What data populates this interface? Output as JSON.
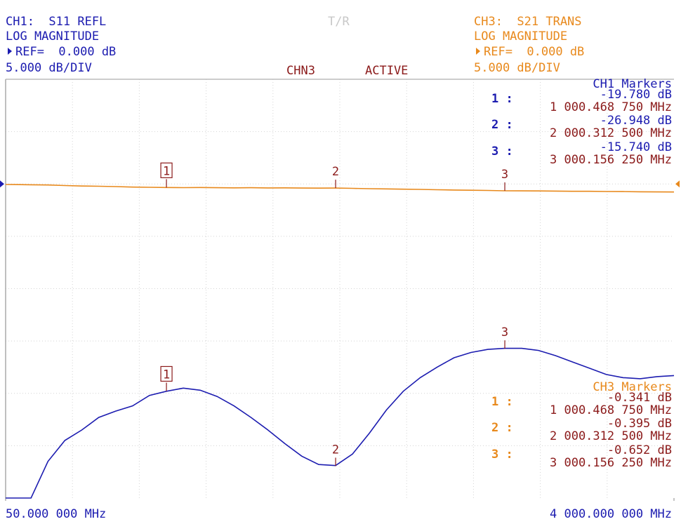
{
  "chart_data": {
    "type": "line",
    "center_label": "T/R",
    "status": [
      "CHN3",
      "ACTIVE"
    ],
    "xlim": [
      50,
      4000
    ],
    "ylim": [
      -30,
      10
    ],
    "xticks": [
      {
        "value": 50,
        "label": "50.000 000 MHz"
      },
      {
        "value": 4000,
        "label": "4 000.000 000 MHz"
      }
    ],
    "x": [
      50,
      100,
      200,
      300,
      400,
      500,
      600,
      700,
      800,
      900,
      1000,
      1100,
      1200,
      1300,
      1400,
      1500,
      1600,
      1700,
      1800,
      1900,
      2000,
      2100,
      2200,
      2300,
      2400,
      2500,
      2600,
      2700,
      2800,
      2900,
      3000,
      3100,
      3200,
      3300,
      3400,
      3500,
      3600,
      3700,
      3800,
      3900,
      4000
    ],
    "series": [
      {
        "name": "CH1:  S11 REFL",
        "format": "LOG MAGNITUDE",
        "ref": {
          "value": 0,
          "label": "REF=  0.000 dB"
        },
        "scale": "5.000 dB/DIV",
        "color": "#1c1cb0",
        "values": [
          -30,
          -30,
          -30,
          -26.5,
          -24.5,
          -23.5,
          -22.3,
          -21.7,
          -21.2,
          -20.2,
          -19.8,
          -19.5,
          -19.7,
          -20.3,
          -21.2,
          -22.3,
          -23.5,
          -24.8,
          -26,
          -26.8,
          -26.9,
          -25.8,
          -23.8,
          -21.6,
          -19.8,
          -18.5,
          -17.5,
          -16.6,
          -16.1,
          -15.8,
          -15.7,
          -15.7,
          -15.9,
          -16.4,
          -17,
          -17.6,
          -18.2,
          -18.5,
          -18.6,
          -18.4,
          -18.3
        ],
        "markers": {
          "title": "CH1 Markers",
          "items": [
            {
              "id": "1 :",
              "tag": "1",
              "value": -19.78,
              "value_label": "-19.780 dB",
              "freq": 1000.46875,
              "freq_label": "1 000.468 750 MHz"
            },
            {
              "id": "2 :",
              "tag": "2",
              "value": -26.948,
              "value_label": "-26.948 dB",
              "freq": 2000.3125,
              "freq_label": "2 000.312 500 MHz"
            },
            {
              "id": "3 :",
              "tag": "3",
              "value": -15.74,
              "value_label": "-15.740 dB",
              "freq": 3000.15625,
              "freq_label": "3 000.156 250 MHz"
            }
          ]
        }
      },
      {
        "name": "CH3:  S21 TRANS",
        "format": "LOG MAGNITUDE",
        "ref": {
          "value": 0,
          "label": "REF=  0.000 dB"
        },
        "scale": "5.000 dB/DIV",
        "color": "#e8891c",
        "values": [
          -0.05,
          -0.06,
          -0.08,
          -0.1,
          -0.15,
          -0.2,
          -0.22,
          -0.25,
          -0.3,
          -0.32,
          -0.341,
          -0.35,
          -0.34,
          -0.36,
          -0.37,
          -0.36,
          -0.38,
          -0.37,
          -0.39,
          -0.4,
          -0.395,
          -0.42,
          -0.45,
          -0.47,
          -0.5,
          -0.52,
          -0.55,
          -0.58,
          -0.6,
          -0.62,
          -0.652,
          -0.66,
          -0.67,
          -0.68,
          -0.7,
          -0.7,
          -0.72,
          -0.73,
          -0.75,
          -0.76,
          -0.77
        ],
        "markers": {
          "title": "CH3 Markers",
          "items": [
            {
              "id": "1 :",
              "tag": "1",
              "value": -0.341,
              "value_label": "-0.341 dB",
              "freq": 1000.46875,
              "freq_label": "1 000.468 750 MHz"
            },
            {
              "id": "2 :",
              "tag": "2",
              "value": -0.395,
              "value_label": "-0.395 dB",
              "freq": 2000.3125,
              "freq_label": "2 000.312 500 MHz"
            },
            {
              "id": "3 :",
              "tag": "3",
              "value": -0.652,
              "value_label": "-0.652 dB",
              "freq": 3000.15625,
              "freq_label": "3 000.156 250 MHz"
            }
          ]
        }
      }
    ]
  }
}
